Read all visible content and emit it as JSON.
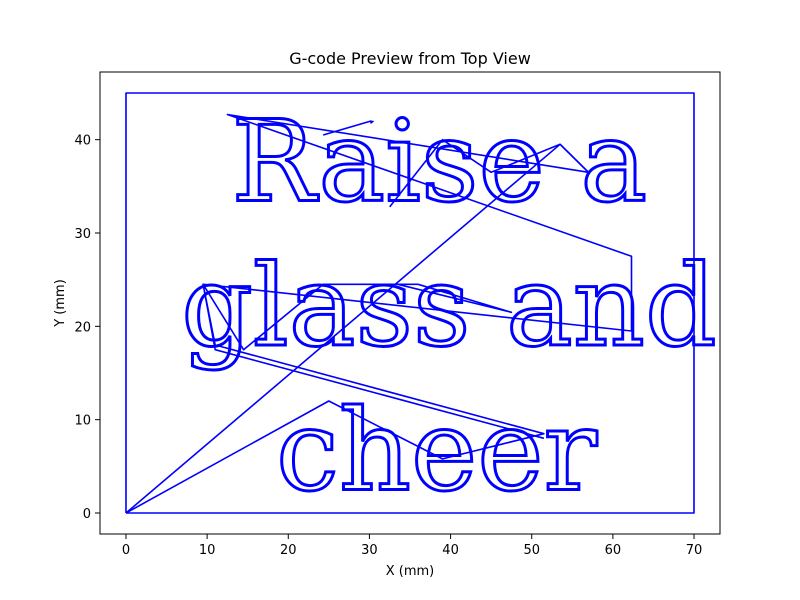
{
  "chart_data": {
    "type": "line",
    "title": "G-code Preview from Top View",
    "xlabel": "X (mm)",
    "ylabel": "Y (mm)",
    "xlim": [
      -3.2,
      73.2
    ],
    "ylim": [
      -2.25,
      47.25
    ],
    "xticks": [
      0,
      10,
      20,
      30,
      40,
      50,
      60,
      70
    ],
    "yticks": [
      0,
      10,
      20,
      30,
      40
    ],
    "grid": false,
    "line_color": "#0000ff",
    "series": [
      {
        "name": "",
        "x": [
          0,
          70,
          70,
          0,
          0
        ],
        "y": [
          0,
          0,
          45,
          45,
          0
        ]
      },
      {
        "name": "",
        "x": [
          0,
          53.5,
          57,
          12.5,
          62.3,
          62.3,
          9.5,
          14.5,
          24.3,
          33.5,
          47.5,
          36,
          24.5
        ],
        "y": [
          0,
          39.5,
          36.5,
          42.7,
          27.5,
          19.5,
          24.5,
          17.5,
          24.5,
          24.5,
          21.5,
          24.5,
          24.5
        ]
      },
      {
        "name": "",
        "x": [
          0,
          25,
          39,
          51.5,
          11,
          9.5,
          11,
          51.5
        ],
        "y": [
          0,
          12,
          5.8,
          8.5,
          18,
          24.5,
          17.5,
          8
        ]
      },
      {
        "name": "",
        "x": [
          32.5,
          39,
          45,
          53.5,
          57
        ],
        "y": [
          32.8,
          40,
          36.5,
          39.5,
          36.5
        ]
      },
      {
        "name": "",
        "x": [
          24.3,
          30.2,
          30.2,
          30.5
        ],
        "y": [
          40.5,
          42,
          41.8,
          42
        ]
      }
    ],
    "text_paths": [
      {
        "text": "Raise a",
        "x": 13,
        "y": 33.5
      },
      {
        "text": "glass and",
        "x": 6.8,
        "y": 18
      },
      {
        "text": "cheer",
        "x": 18.5,
        "y": 2.5
      }
    ]
  }
}
